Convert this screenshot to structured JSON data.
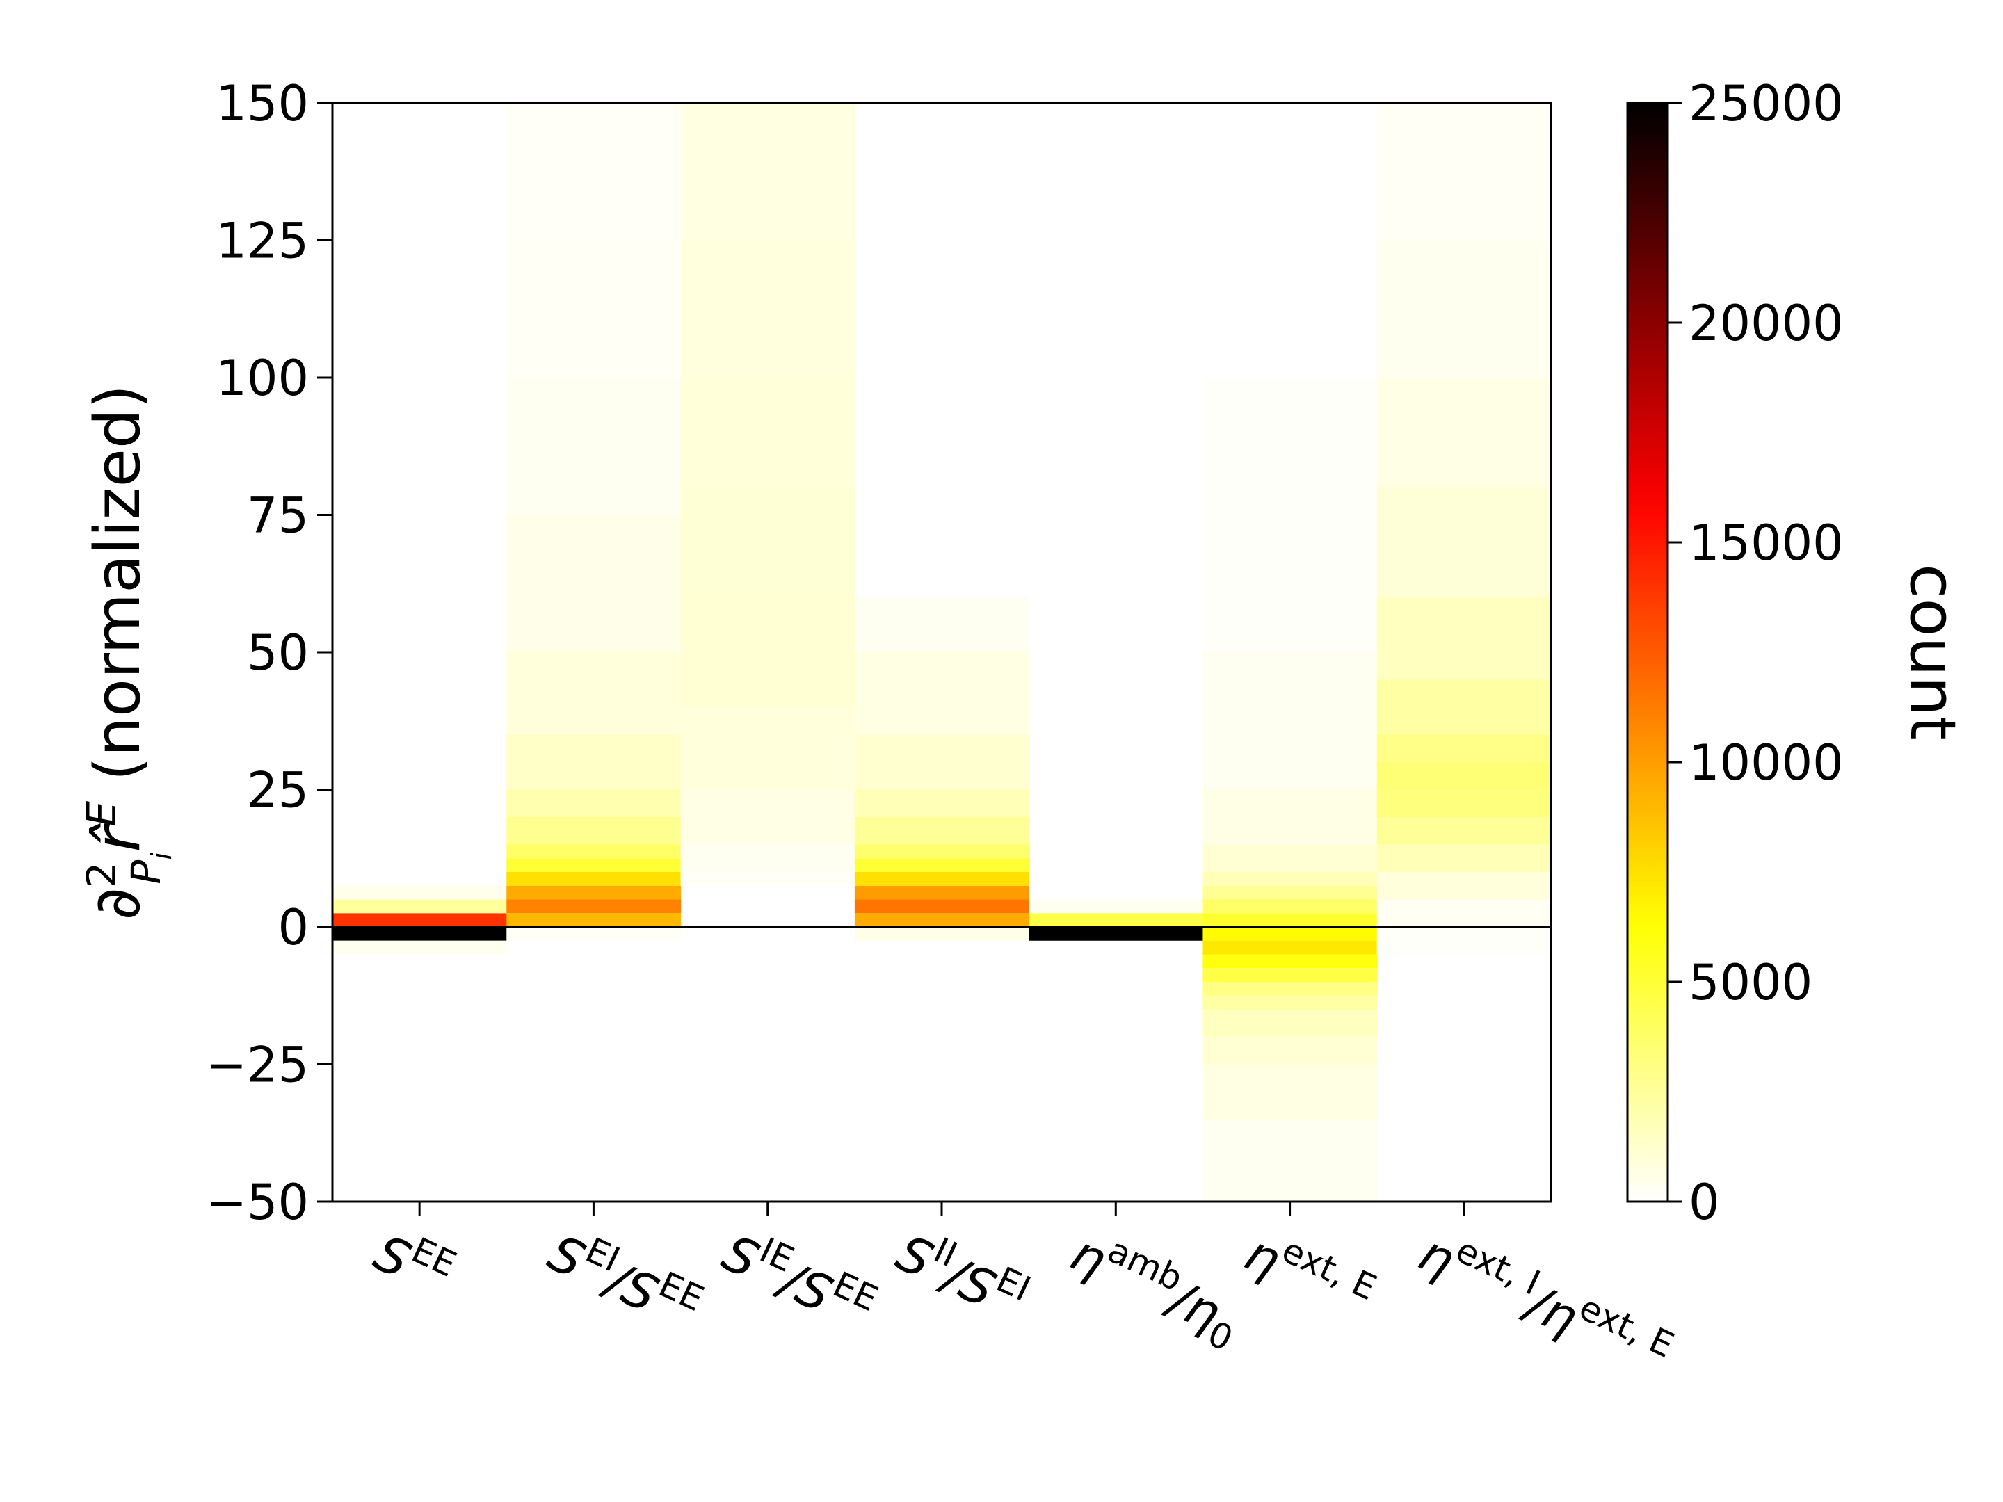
{
  "chart_data": {
    "type": "heatmap",
    "title": "",
    "ylabel": "∂²Pᵢ r̂ᴱ (normalized)",
    "ylabel_parts": {
      "partial": "∂",
      "power": "2",
      "sub": "P",
      "subsub": "i",
      "var": "r̂",
      "sup": "E",
      "rest": "(normalized)"
    },
    "xlabel": "",
    "ylim": [
      -50,
      150
    ],
    "y_ticks": [
      "150",
      "125",
      "100",
      "75",
      "50",
      "25",
      "0",
      "−25",
      "−50"
    ],
    "y_tick_values": [
      150,
      125,
      100,
      75,
      50,
      25,
      0,
      -25,
      -50
    ],
    "categories": [
      {
        "base": "S",
        "sup": "EE",
        "sep": "",
        "base2": "",
        "sub2": "",
        "sup2": ""
      },
      {
        "base": "S",
        "sup": "EI",
        "sep": "/",
        "base2": "S",
        "sub2": "",
        "sup2": "EE"
      },
      {
        "base": "S",
        "sup": "IE",
        "sep": "/",
        "base2": "S",
        "sub2": "",
        "sup2": "EE"
      },
      {
        "base": "S",
        "sup": "II",
        "sep": "/",
        "base2": "S",
        "sub2": "",
        "sup2": "EI"
      },
      {
        "base": "η",
        "sup": "amb",
        "sep": "/",
        "base2": "η",
        "sub2": "0",
        "sup2": ""
      },
      {
        "base": "η",
        "sup": "ext, E",
        "sep": "",
        "base2": "",
        "sub2": "",
        "sup2": ""
      },
      {
        "base": "η",
        "sup": "ext, I",
        "sep": "/",
        "base2": "η",
        "sub2": "",
        "sup2": "ext, E"
      }
    ],
    "zero_line": 0,
    "colormap": "hot_r",
    "colorbar": {
      "label": "count",
      "min": 0,
      "max": 25000,
      "ticks": [
        "25000",
        "20000",
        "15000",
        "10000",
        "5000",
        "0"
      ],
      "tick_values": [
        25000,
        20000,
        15000,
        10000,
        5000,
        0
      ]
    },
    "columns": [
      {
        "name": "S^EE",
        "bins": [
          {
            "y0": -2.5,
            "y1": 0,
            "count": 25000
          },
          {
            "y0": 0,
            "y1": 2.5,
            "count": 14000
          },
          {
            "y0": 2.5,
            "y1": 5,
            "count": 2500
          },
          {
            "y0": 5,
            "y1": 7.5,
            "count": 500
          },
          {
            "y0": -5,
            "y1": -2.5,
            "count": 400
          }
        ]
      },
      {
        "name": "S^EI/S^EE",
        "bins": [
          {
            "y0": 0,
            "y1": 2.5,
            "count": 9000
          },
          {
            "y0": 2.5,
            "y1": 5,
            "count": 11000
          },
          {
            "y0": 5,
            "y1": 7.5,
            "count": 9500
          },
          {
            "y0": 7.5,
            "y1": 10,
            "count": 7500
          },
          {
            "y0": 10,
            "y1": 12.5,
            "count": 5000
          },
          {
            "y0": 12.5,
            "y1": 15,
            "count": 3800
          },
          {
            "y0": 15,
            "y1": 20,
            "count": 2800
          },
          {
            "y0": 20,
            "y1": 25,
            "count": 2000
          },
          {
            "y0": 25,
            "y1": 35,
            "count": 1400
          },
          {
            "y0": 35,
            "y1": 50,
            "count": 900
          },
          {
            "y0": 50,
            "y1": 75,
            "count": 550
          },
          {
            "y0": 75,
            "y1": 100,
            "count": 350
          },
          {
            "y0": 100,
            "y1": 125,
            "count": 250
          },
          {
            "y0": 125,
            "y1": 150,
            "count": 200
          },
          {
            "y0": -2.5,
            "y1": 0,
            "count": 200
          }
        ]
      },
      {
        "name": "S^IE/S^EE",
        "bins": [
          {
            "y0": 7.5,
            "y1": 10,
            "count": 180
          },
          {
            "y0": 10,
            "y1": 15,
            "count": 350
          },
          {
            "y0": 15,
            "y1": 25,
            "count": 650
          },
          {
            "y0": 25,
            "y1": 40,
            "count": 900
          },
          {
            "y0": 40,
            "y1": 60,
            "count": 1100
          },
          {
            "y0": 60,
            "y1": 80,
            "count": 1050
          },
          {
            "y0": 80,
            "y1": 100,
            "count": 950
          },
          {
            "y0": 100,
            "y1": 125,
            "count": 850
          },
          {
            "y0": 125,
            "y1": 150,
            "count": 750
          }
        ]
      },
      {
        "name": "S^II/S^EI",
        "bins": [
          {
            "y0": 0,
            "y1": 2.5,
            "count": 9500
          },
          {
            "y0": 2.5,
            "y1": 5,
            "count": 11500
          },
          {
            "y0": 5,
            "y1": 7.5,
            "count": 10000
          },
          {
            "y0": 7.5,
            "y1": 10,
            "count": 7500
          },
          {
            "y0": 10,
            "y1": 12.5,
            "count": 5000
          },
          {
            "y0": 12.5,
            "y1": 15,
            "count": 3600
          },
          {
            "y0": 15,
            "y1": 20,
            "count": 2600
          },
          {
            "y0": 20,
            "y1": 25,
            "count": 1800
          },
          {
            "y0": 25,
            "y1": 35,
            "count": 1200
          },
          {
            "y0": 35,
            "y1": 50,
            "count": 700
          },
          {
            "y0": 50,
            "y1": 60,
            "count": 350
          },
          {
            "y0": -2.5,
            "y1": 0,
            "count": 600
          }
        ]
      },
      {
        "name": "η^amb/η_0",
        "bins": [
          {
            "y0": -2.5,
            "y1": 0,
            "count": 25000
          },
          {
            "y0": 0,
            "y1": 2.5,
            "count": 4500
          },
          {
            "y0": 2.5,
            "y1": 5,
            "count": 400
          }
        ]
      },
      {
        "name": "η^ext,E",
        "bins": [
          {
            "y0": -2.5,
            "y1": 0,
            "count": 6500
          },
          {
            "y0": -5,
            "y1": -2.5,
            "count": 7200
          },
          {
            "y0": -7.5,
            "y1": -5,
            "count": 6000
          },
          {
            "y0": -10,
            "y1": -7.5,
            "count": 4600
          },
          {
            "y0": -12.5,
            "y1": -10,
            "count": 3100
          },
          {
            "y0": -15,
            "y1": -12.5,
            "count": 2300
          },
          {
            "y0": -20,
            "y1": -15,
            "count": 1600
          },
          {
            "y0": -25,
            "y1": -20,
            "count": 1100
          },
          {
            "y0": -35,
            "y1": -25,
            "count": 700
          },
          {
            "y0": -50,
            "y1": -35,
            "count": 350
          },
          {
            "y0": 0,
            "y1": 2.5,
            "count": 5200
          },
          {
            "y0": 2.5,
            "y1": 5,
            "count": 3800
          },
          {
            "y0": 5,
            "y1": 7.5,
            "count": 2700
          },
          {
            "y0": 7.5,
            "y1": 10,
            "count": 1800
          },
          {
            "y0": 10,
            "y1": 15,
            "count": 1100
          },
          {
            "y0": 15,
            "y1": 25,
            "count": 650
          },
          {
            "y0": 25,
            "y1": 50,
            "count": 350
          },
          {
            "y0": 50,
            "y1": 100,
            "count": 150
          }
        ]
      },
      {
        "name": "η^ext,I/η^ext,E",
        "bins": [
          {
            "y0": -5,
            "y1": 0,
            "count": 120
          },
          {
            "y0": 0,
            "y1": 5,
            "count": 300
          },
          {
            "y0": 5,
            "y1": 10,
            "count": 900
          },
          {
            "y0": 10,
            "y1": 15,
            "count": 1800
          },
          {
            "y0": 15,
            "y1": 20,
            "count": 2600
          },
          {
            "y0": 20,
            "y1": 25,
            "count": 3200
          },
          {
            "y0": 25,
            "y1": 30,
            "count": 3400
          },
          {
            "y0": 30,
            "y1": 35,
            "count": 3000
          },
          {
            "y0": 35,
            "y1": 45,
            "count": 2300
          },
          {
            "y0": 45,
            "y1": 60,
            "count": 1600
          },
          {
            "y0": 60,
            "y1": 80,
            "count": 1000
          },
          {
            "y0": 80,
            "y1": 100,
            "count": 650
          },
          {
            "y0": 100,
            "y1": 125,
            "count": 400
          },
          {
            "y0": 125,
            "y1": 150,
            "count": 250
          }
        ]
      }
    ]
  }
}
